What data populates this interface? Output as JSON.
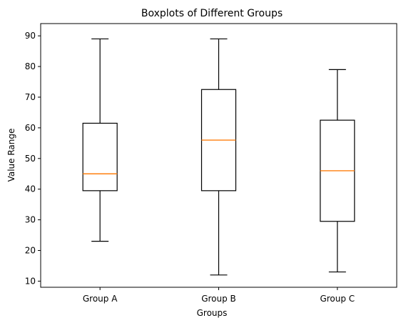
{
  "chart_data": {
    "type": "boxplot",
    "title": "Boxplots of Different Groups",
    "xlabel": "Groups",
    "ylabel": "Value Range",
    "categories": [
      "Group A",
      "Group B",
      "Group C"
    ],
    "series": [
      {
        "category": "Group A",
        "whisker_low": 23,
        "q1": 39.5,
        "median": 45,
        "q3": 61.5,
        "whisker_high": 89
      },
      {
        "category": "Group B",
        "whisker_low": 12,
        "q1": 39.5,
        "median": 56,
        "q3": 72.5,
        "whisker_high": 89
      },
      {
        "category": "Group C",
        "whisker_low": 13,
        "q1": 29.5,
        "median": 46,
        "q3": 62.5,
        "whisker_high": 79
      }
    ],
    "ylim": [
      8,
      94
    ],
    "yticks": [
      10,
      20,
      30,
      40,
      50,
      60,
      70,
      80,
      90
    ],
    "grid": false,
    "colors": {
      "box": "#000000",
      "median": "#ff7f0e",
      "axis": "#000000"
    }
  }
}
